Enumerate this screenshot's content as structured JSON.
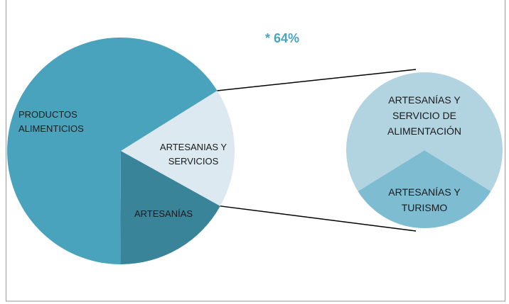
{
  "chart_data": {
    "type": "pie-of-pie",
    "annotation": "* 64%",
    "categories": [
      "ARTESANIAS Y SERVICIOS",
      "ARTESANÍAS",
      "PRODUCTOS ALIMENTICIOS"
    ],
    "values": [
      17,
      17,
      66
    ],
    "colors": [
      "#dce9f0",
      "#3a8499",
      "#4aa3bd"
    ],
    "secondary": {
      "categories": [
        "ARTESANÍAS Y TURISMO",
        "ARTESANÍAS Y SERVICIO DE ALIMENTACIÓN"
      ],
      "values": [
        5.5,
        11.5
      ],
      "colors": [
        "#7dbcd1",
        "#b2d3e0"
      ]
    }
  }
}
